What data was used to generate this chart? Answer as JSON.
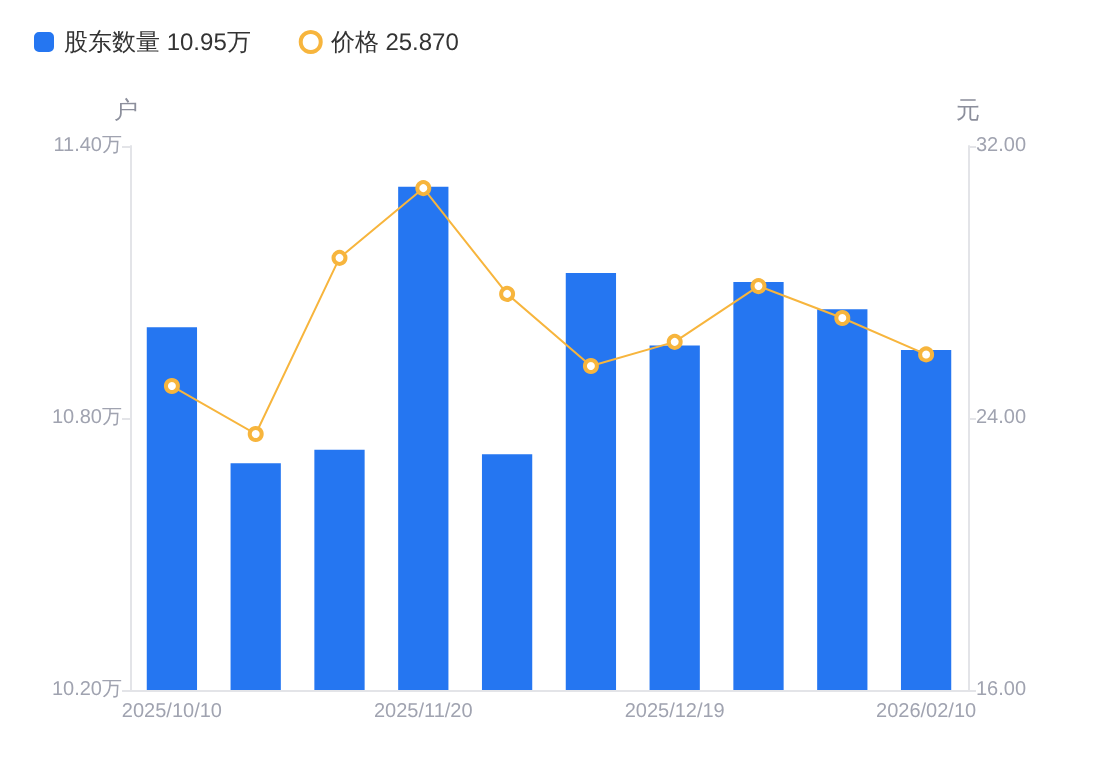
{
  "chart_data": {
    "type": "bar",
    "ylabel": "户",
    "y2label": "元",
    "categories": [
      "2025/10/10",
      null,
      null,
      "2025/11/20",
      null,
      null,
      "2025/12/19",
      null,
      null,
      "2026/02/10"
    ],
    "series": [
      {
        "name": "股东数量 10.95万",
        "color": "#2576f1",
        "values": [
          11.0,
          10.7,
          10.73,
          11.31,
          10.72,
          11.12,
          10.96,
          11.1,
          11.04,
          10.95
        ]
      },
      {
        "name": "价格 25.870",
        "type": "line",
        "axis": "y2",
        "color": "#f7b53d",
        "marker": "circle",
        "values": [
          24.94,
          23.53,
          28.71,
          30.76,
          27.65,
          25.53,
          26.24,
          27.88,
          26.94,
          25.87
        ]
      }
    ],
    "ylim": [
      10.2,
      11.4
    ],
    "yticks": [
      {
        "value": 10.2,
        "label": "10.20万"
      },
      {
        "value": 10.8,
        "label": "10.80万"
      },
      {
        "value": 11.4,
        "label": "11.40万"
      }
    ],
    "y2lim": [
      16,
      32
    ],
    "y2ticks": [
      {
        "value": 16,
        "label": "16.00"
      },
      {
        "value": 24,
        "label": "24.00"
      },
      {
        "value": 32,
        "label": "32.00"
      }
    ],
    "grid": false,
    "legend": "top left"
  }
}
